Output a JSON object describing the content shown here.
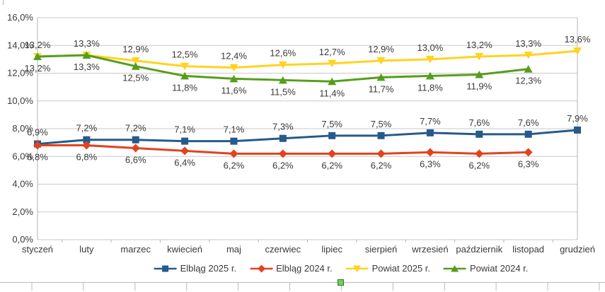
{
  "chart_data": {
    "type": "line",
    "title": "",
    "categories": [
      "styczeń",
      "luty",
      "marzec",
      "kwiecień",
      "maj",
      "czerwiec",
      "lipiec",
      "sierpień",
      "wrzesień",
      "październik",
      "listopad",
      "grudzień"
    ],
    "series": [
      {
        "name": "Elbląg 2025 r.",
        "color": "#255a8c",
        "marker": "square",
        "label_position": "above",
        "values": [
          6.9,
          7.2,
          7.2,
          7.1,
          7.1,
          7.3,
          7.5,
          7.5,
          7.7,
          7.6,
          7.6,
          7.9
        ]
      },
      {
        "name": "Elbląg 2024 r.",
        "color": "#e2431e",
        "marker": "diamond",
        "label_position": "below",
        "values": [
          6.8,
          6.8,
          6.6,
          6.4,
          6.2,
          6.2,
          6.2,
          6.2,
          6.3,
          6.2,
          6.3,
          null
        ]
      },
      {
        "name": "Powiat 2025 r.",
        "color": "#ffd320",
        "marker": "triangle-down",
        "label_position": "above",
        "values": [
          13.2,
          13.3,
          12.9,
          12.5,
          12.4,
          12.6,
          12.7,
          12.9,
          13.0,
          13.2,
          13.3,
          13.6
        ]
      },
      {
        "name": "Powiat 2024 r.",
        "color": "#579d1c",
        "marker": "triangle-up",
        "label_position": "below",
        "values": [
          13.2,
          13.3,
          12.5,
          11.8,
          11.6,
          11.5,
          11.4,
          11.7,
          11.8,
          11.9,
          12.3,
          null
        ]
      }
    ],
    "y_axis": {
      "min": 0,
      "max": 16,
      "step": 2,
      "tick_labels": [
        "0,0%",
        "2,0%",
        "4,0%",
        "6,0%",
        "8,0%",
        "10,0%",
        "12,0%",
        "14,0%",
        "16,0%"
      ]
    },
    "value_suffix": "%",
    "decimal_separator": ",",
    "grid": true,
    "legend_position": "bottom",
    "colors": {
      "grid_line": "#c9c9c9",
      "axis_line": "#b3b3b3",
      "text": "#3a3a3a"
    }
  },
  "spreadsheet": {
    "selection_handle_color": "#7ccb5b",
    "cell_border_color": "#b9b9b9"
  }
}
